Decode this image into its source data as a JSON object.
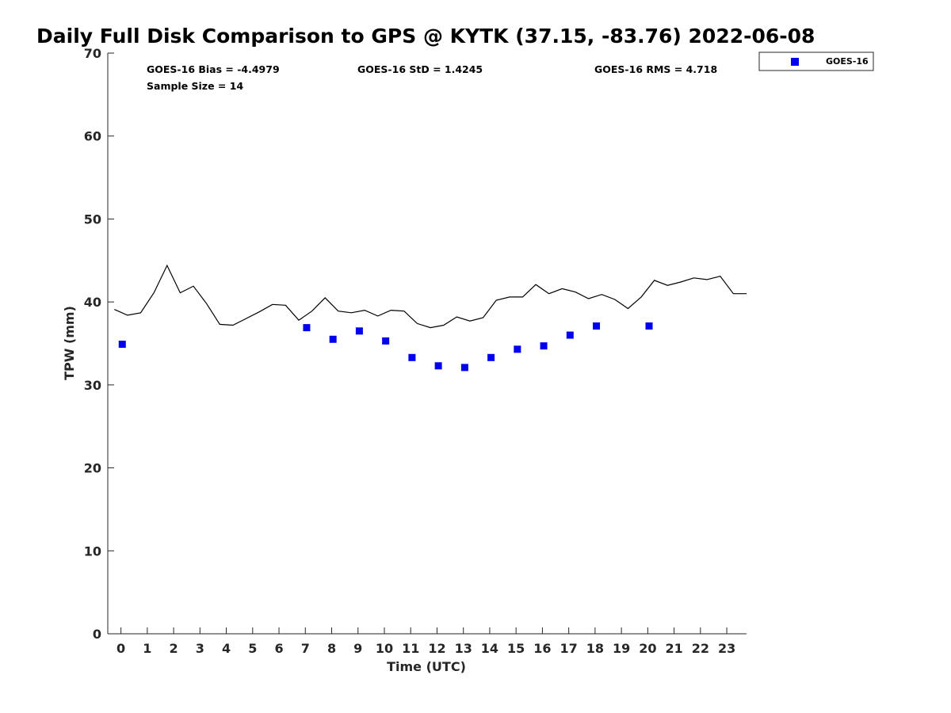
{
  "chart_data": {
    "type": "scatter",
    "title": "Daily Full Disk Comparison to GPS @ KYTK (37.15, -83.76) 2022-06-08",
    "xlabel": "Time (UTC)",
    "ylabel": "TPW (mm)",
    "xlim": [
      -0.5,
      23.75
    ],
    "ylim": [
      0,
      70
    ],
    "xticks": [
      "0",
      "1",
      "2",
      "3",
      "4",
      "5",
      "6",
      "7",
      "8",
      "9",
      "10",
      "11",
      "12",
      "13",
      "14",
      "15",
      "16",
      "17",
      "18",
      "19",
      "20",
      "21",
      "22",
      "23"
    ],
    "yticks": [
      "0",
      "10",
      "20",
      "30",
      "40",
      "50",
      "60",
      "70"
    ],
    "grid": false,
    "legend": {
      "position": "top-right",
      "entries": [
        "GOES-16"
      ]
    },
    "stats": {
      "bias": "GOES-16 Bias = -4.4979",
      "std": "GOES-16 StD = 1.4245",
      "rms": "GOES-16 RMS = 4.718",
      "sample": "Sample Size = 14"
    },
    "series": [
      {
        "name": "GOES-16",
        "style": "markers",
        "color": "#0000ee",
        "x": [
          0.05,
          7.05,
          8.05,
          9.05,
          10.05,
          11.05,
          12.05,
          13.05,
          14.05,
          15.05,
          16.05,
          17.05,
          18.05,
          20.05
        ],
        "y": [
          34.9,
          36.9,
          35.5,
          36.5,
          35.3,
          33.3,
          32.3,
          32.1,
          33.3,
          34.3,
          34.7,
          36.0,
          37.1,
          37.1
        ]
      },
      {
        "style": "line",
        "color": "#000000",
        "x": [
          -0.25,
          0.25,
          0.75,
          1.25,
          1.75,
          2.25,
          2.75,
          3.25,
          3.75,
          4.25,
          4.75,
          5.25,
          5.75,
          6.25,
          6.75,
          7.25,
          7.75,
          8.25,
          8.75,
          9.25,
          9.75,
          10.25,
          10.75,
          11.25,
          11.75,
          12.25,
          12.75,
          13.25,
          13.75,
          14.25,
          14.75,
          15.25,
          15.75,
          16.25,
          16.75,
          17.25,
          17.75,
          18.25,
          18.75,
          19.25,
          19.75,
          20.25,
          20.75,
          21.25,
          21.75,
          22.25,
          22.75,
          23.25,
          23.75
        ],
        "y": [
          39.1,
          38.4,
          38.7,
          41.1,
          44.4,
          41.1,
          41.9,
          39.8,
          37.3,
          37.2,
          38.0,
          38.8,
          39.7,
          39.6,
          37.8,
          38.9,
          40.5,
          38.9,
          38.7,
          39.0,
          38.3,
          39.0,
          38.9,
          37.4,
          36.9,
          37.2,
          38.2,
          37.7,
          38.1,
          40.2,
          40.6,
          40.6,
          42.1,
          41.0,
          41.6,
          41.2,
          40.4,
          40.9,
          40.3,
          39.2,
          40.6,
          42.6,
          42.0,
          42.4,
          42.9,
          42.7,
          43.1,
          41.0,
          41.0
        ]
      }
    ]
  }
}
